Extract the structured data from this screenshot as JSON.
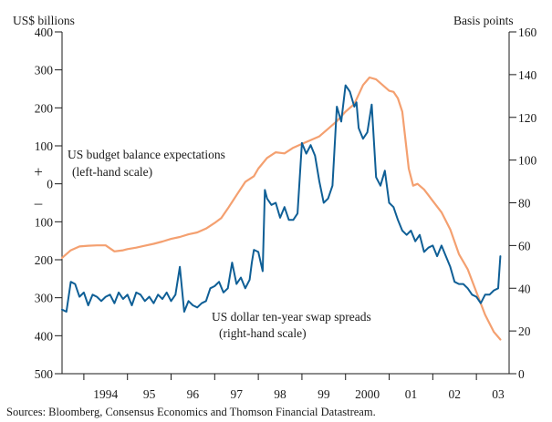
{
  "chart_data": {
    "type": "line",
    "left_axis": {
      "title": "US$ billions",
      "range": [
        -500,
        400
      ],
      "ticks": [
        400,
        300,
        200,
        100,
        0,
        -100,
        -200,
        -300,
        -400,
        -500
      ],
      "tick_labels": [
        "400",
        "300",
        "200",
        "100",
        "0",
        "100",
        "200",
        "300",
        "400",
        "500"
      ],
      "sign_plus": "+",
      "sign_minus": "–"
    },
    "right_axis": {
      "title": "Basis points",
      "range": [
        0,
        160
      ],
      "ticks": [
        160,
        140,
        120,
        100,
        80,
        60,
        40,
        20,
        0
      ],
      "tick_labels": [
        "160",
        "140",
        "120",
        "100",
        "80",
        "60",
        "40",
        "20",
        "0"
      ]
    },
    "x_axis": {
      "range": [
        1993.5,
        2003.75
      ],
      "year_ticks": [
        1994,
        1995,
        1996,
        1997,
        1998,
        1999,
        2000,
        2001,
        2002,
        2003,
        2004
      ],
      "labels": [
        {
          "text": "1994",
          "x": 1994.5
        },
        {
          "text": "95",
          "x": 1995.5
        },
        {
          "text": "96",
          "x": 1996.5
        },
        {
          "text": "97",
          "x": 1997.5
        },
        {
          "text": "98",
          "x": 1998.5
        },
        {
          "text": "99",
          "x": 1999.5
        },
        {
          "text": "2000",
          "x": 2000.5
        },
        {
          "text": "01",
          "x": 2001.5
        },
        {
          "text": "02",
          "x": 2002.5
        },
        {
          "text": "03",
          "x": 2003.5
        }
      ]
    },
    "series": [
      {
        "name": "US budget balance expectations",
        "axis": "left",
        "color": "#f4a070",
        "x": [
          1993.5,
          1993.7,
          1993.9,
          1994.1,
          1994.3,
          1994.5,
          1994.7,
          1994.9,
          1995.0,
          1995.2,
          1995.4,
          1995.6,
          1995.8,
          1996.0,
          1996.2,
          1996.4,
          1996.6,
          1996.8,
          1997.0,
          1997.15,
          1997.3,
          1997.5,
          1997.7,
          1997.9,
          1998.0,
          1998.2,
          1998.4,
          1998.6,
          1998.8,
          1999.0,
          1999.2,
          1999.4,
          1999.6,
          1999.8,
          2000.0,
          2000.2,
          2000.4,
          2000.55,
          2000.7,
          2000.9,
          2001.0,
          2001.1,
          2001.2,
          2001.3,
          2001.45,
          2001.55,
          2001.65,
          2001.8,
          2001.9,
          2002.0,
          2002.2,
          2002.4,
          2002.6,
          2002.8,
          2003.0,
          2003.2,
          2003.4,
          2003.55
        ],
        "values": [
          -195,
          -175,
          -165,
          -163,
          -162,
          -162,
          -178,
          -175,
          -172,
          -168,
          -163,
          -158,
          -152,
          -145,
          -140,
          -133,
          -128,
          -118,
          -103,
          -90,
          -65,
          -30,
          5,
          20,
          40,
          68,
          83,
          80,
          95,
          105,
          115,
          125,
          145,
          165,
          190,
          210,
          260,
          280,
          275,
          255,
          245,
          242,
          225,
          190,
          40,
          -5,
          0,
          -15,
          -30,
          -45,
          -75,
          -120,
          -185,
          -225,
          -285,
          -345,
          -390,
          -410
        ]
      },
      {
        "name": "US dollar ten-year swap spreads",
        "axis": "right",
        "color": "#0f5f96",
        "x": [
          1993.5,
          1993.6,
          1993.7,
          1993.8,
          1993.9,
          1994.0,
          1994.1,
          1994.2,
          1994.3,
          1994.4,
          1994.5,
          1994.6,
          1994.7,
          1994.8,
          1994.9,
          1995.0,
          1995.1,
          1995.2,
          1995.3,
          1995.4,
          1995.5,
          1995.6,
          1995.7,
          1995.8,
          1995.9,
          1996.0,
          1996.1,
          1996.2,
          1996.3,
          1996.4,
          1996.5,
          1996.6,
          1996.7,
          1996.8,
          1996.9,
          1997.0,
          1997.1,
          1997.2,
          1997.3,
          1997.4,
          1997.5,
          1997.6,
          1997.7,
          1997.8,
          1997.85,
          1997.9,
          1998.0,
          1998.1,
          1998.15,
          1998.2,
          1998.3,
          1998.4,
          1998.5,
          1998.6,
          1998.7,
          1998.8,
          1998.9,
          1999.0,
          1999.1,
          1999.2,
          1999.3,
          1999.4,
          1999.5,
          1999.6,
          1999.7,
          1999.8,
          1999.9,
          2000.0,
          2000.1,
          2000.2,
          2000.25,
          2000.3,
          2000.4,
          2000.5,
          2000.6,
          2000.7,
          2000.8,
          2000.9,
          2001.0,
          2001.1,
          2001.2,
          2001.3,
          2001.4,
          2001.5,
          2001.6,
          2001.7,
          2001.8,
          2001.9,
          2002.0,
          2002.1,
          2002.2,
          2002.3,
          2002.4,
          2002.5,
          2002.6,
          2002.7,
          2002.8,
          2002.9,
          2003.0,
          2003.1,
          2003.2,
          2003.3,
          2003.4,
          2003.5,
          2003.55
        ],
        "values": [
          30,
          29,
          43,
          42,
          36,
          38,
          32,
          37,
          36,
          34,
          36,
          37,
          33,
          38,
          35,
          37,
          32,
          38,
          37,
          34,
          36,
          33,
          37,
          35,
          38,
          34,
          37,
          50,
          29,
          34,
          32,
          31,
          33,
          34,
          40,
          41,
          43,
          38,
          40,
          52,
          42,
          45,
          40,
          44,
          52,
          58,
          57,
          48,
          86,
          82,
          79,
          80,
          73,
          78,
          72,
          72,
          75,
          108,
          103,
          107,
          102,
          90,
          80,
          82,
          88,
          125,
          118,
          135,
          132,
          125,
          127,
          115,
          110,
          113,
          126,
          92,
          88,
          95,
          80,
          78,
          72,
          67,
          65,
          67,
          62,
          65,
          57,
          59,
          60,
          55,
          60,
          55,
          50,
          43,
          42,
          42,
          40,
          37,
          36,
          33,
          37,
          37,
          39,
          40,
          55
        ]
      }
    ],
    "annotations": [
      {
        "line1": "US budget balance expectations",
        "line2": "(left-hand scale)"
      },
      {
        "line1": "US dollar ten-year swap spreads",
        "line2": "(right-hand scale)"
      }
    ],
    "source": "Sources:  Bloomberg, Consensus Economics and Thomson Financial Datastream."
  }
}
